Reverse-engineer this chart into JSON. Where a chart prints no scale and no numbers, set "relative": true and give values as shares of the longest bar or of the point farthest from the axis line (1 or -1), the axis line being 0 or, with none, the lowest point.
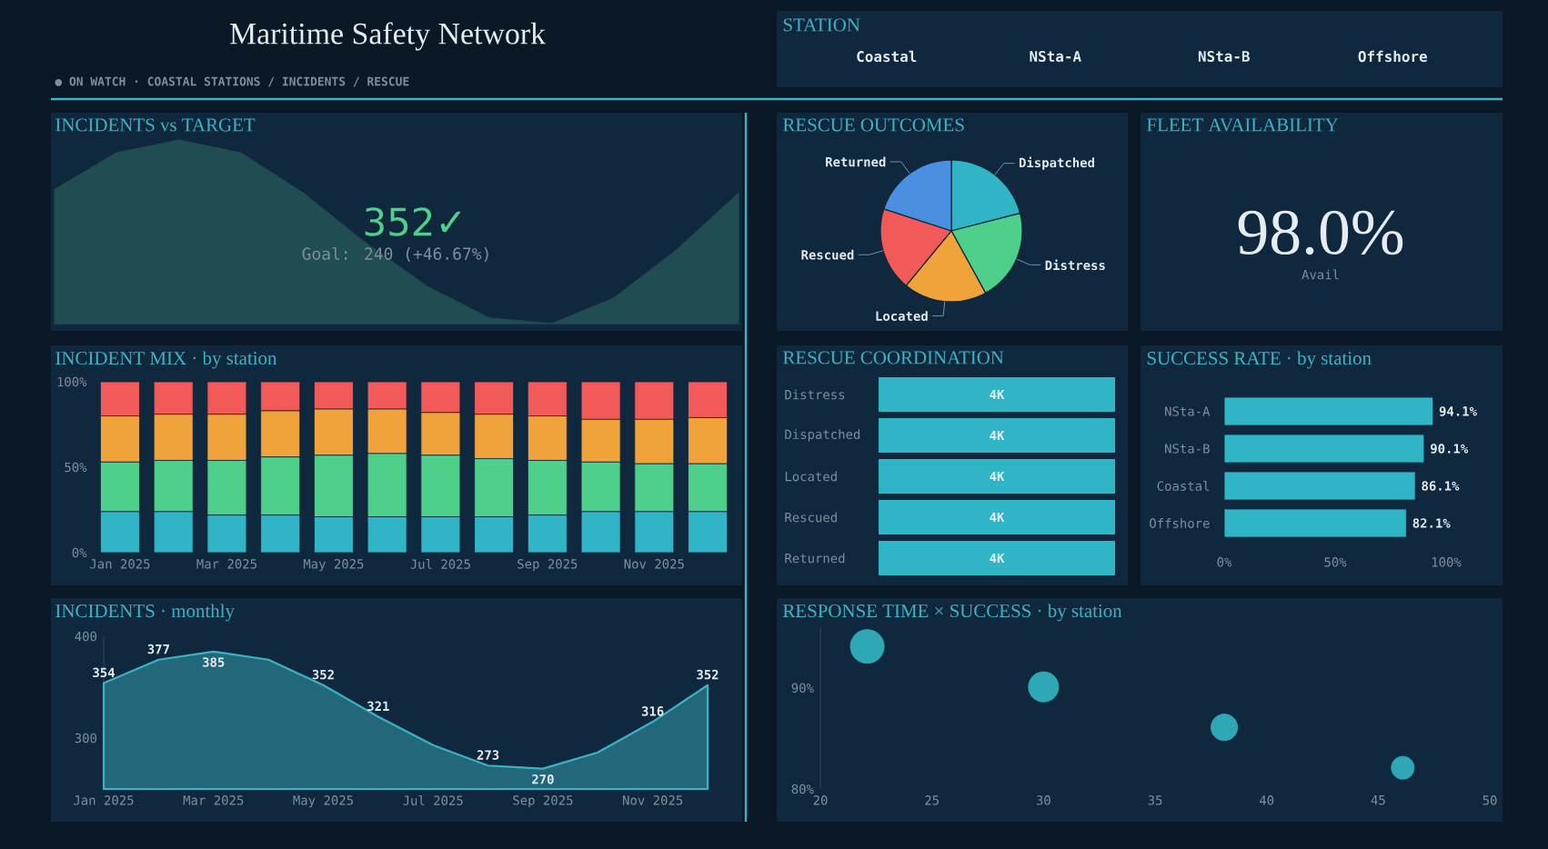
{
  "chart_data": [
    {
      "type": "other",
      "title": "Maritime Safety Network",
      "subtitle": "● ON WATCH  ·  COASTAL STATIONS / INCIDENTS / RESCUE"
    },
    {
      "type": "other",
      "title": "STATION",
      "categories": [
        "Coastal",
        "NSta-A",
        "NSta-B",
        "Offshore"
      ]
    },
    {
      "type": "area",
      "title": "INCIDENTS vs TARGET",
      "relative": true,
      "categories": [
        null,
        null,
        null,
        null,
        null,
        null,
        null,
        null,
        null,
        null,
        null,
        null
      ],
      "values": [
        0.73,
        0.93,
        1,
        0.93,
        0.71,
        0.44,
        0.2,
        0.03,
        0,
        0.14,
        0.4,
        0.71
      ],
      "color": "#1f4d52",
      "annotations": [
        "352✓",
        "Goal: 240 (+46.67%)"
      ]
    },
    {
      "type": "pie",
      "title": "RESCUE OUTCOMES",
      "categories": [
        "Dispatched",
        "Distress",
        "Located",
        "Rescued",
        "Returned"
      ],
      "values": [
        21,
        21,
        19,
        19,
        20
      ],
      "colors": [
        "#2fb5c6",
        "#4ecf8a",
        "#f0a23b",
        "#f25a5a",
        "#4a8fe0"
      ]
    },
    {
      "type": "other",
      "title": "FLEET AVAILABILITY",
      "annotations": [
        "98.0%",
        "Avail"
      ]
    },
    {
      "type": "bar",
      "title": "INCIDENT MIX · by station",
      "stacked": true,
      "categories": [
        "Jan 2025",
        null,
        "Mar 2025",
        null,
        "May 2025",
        null,
        "Jul 2025",
        null,
        "Sep 2025",
        null,
        "Nov 2025",
        null
      ],
      "ylim": [
        0,
        100
      ],
      "yticks": [
        {
          "value": 0,
          "label": "0%"
        },
        {
          "value": 50,
          "label": "50%"
        },
        {
          "value": 100,
          "label": "100%"
        }
      ],
      "series": [
        {
          "color": "#2fb5c6",
          "values": [
            24,
            24,
            22,
            22,
            21,
            21,
            21,
            21,
            22,
            24,
            24,
            24
          ]
        },
        {
          "color": "#4ecf8a",
          "values": [
            29,
            30,
            32,
            34,
            36,
            37,
            36,
            34,
            32,
            29,
            28,
            28
          ]
        },
        {
          "color": "#f0a23b",
          "values": [
            27,
            27,
            27,
            27,
            27,
            26,
            25,
            26,
            26,
            25,
            26,
            27
          ]
        },
        {
          "color": "#f25a5a",
          "values": [
            20,
            19,
            19,
            17,
            16,
            16,
            18,
            19,
            20,
            22,
            22,
            21
          ]
        }
      ]
    },
    {
      "type": "other",
      "title": "RESCUE COORDINATION",
      "categories": [
        "Distress",
        "Dispatched",
        "Located",
        "Rescued",
        "Returned"
      ],
      "values": [
        4000,
        4000,
        4000,
        4000,
        4000
      ],
      "value_labels": [
        "4K",
        "4K",
        "4K",
        "4K",
        "4K"
      ],
      "color": "#2fb5c6"
    },
    {
      "type": "bar",
      "title": "SUCCESS RATE · by station",
      "orientation": "horizontal",
      "categories": [
        "NSta-A",
        "NSta-B",
        "Coastal",
        "Offshore"
      ],
      "values": [
        94.1,
        90.1,
        86.1,
        82.1
      ],
      "value_labels": [
        "94.1%",
        "90.1%",
        "86.1%",
        "82.1%"
      ],
      "color": "#2fb5c6",
      "xlim": [
        0,
        100
      ],
      "xticks": [
        {
          "value": 0,
          "label": "0%"
        },
        {
          "value": 50,
          "label": "50%"
        },
        {
          "value": 100,
          "label": "100%"
        }
      ]
    },
    {
      "type": "area",
      "title": "INCIDENTS · monthly",
      "categories": [
        "Jan 2025",
        null,
        "Mar 2025",
        null,
        "May 2025",
        null,
        "Jul 2025",
        null,
        "Sep 2025",
        null,
        "Nov 2025",
        null
      ],
      "values": [
        354,
        377,
        385,
        377,
        352,
        321,
        293,
        273,
        270,
        286,
        316,
        352
      ],
      "value_labels": [
        "354",
        "377",
        "385",
        null,
        "352",
        "321",
        null,
        "273",
        "270",
        null,
        "316",
        "352"
      ],
      "color": "#3bb3c3",
      "ylim": [
        250,
        400
      ],
      "yticks": [
        300,
        400
      ]
    },
    {
      "type": "bubble",
      "title": "RESPONSE TIME × SUCCESS · by station",
      "x": [
        22.1,
        30,
        38.1,
        46.1
      ],
      "values": [
        94.1,
        90.1,
        86.1,
        82.1
      ],
      "sizes": [
        1,
        0.8,
        0.62,
        0.46
      ],
      "color": "#2fa8b5",
      "xlim": [
        20,
        50
      ],
      "xticks": [
        20,
        25,
        30,
        35,
        40,
        45,
        50
      ],
      "ylim": [
        80,
        96
      ],
      "yticks": [
        {
          "value": 80,
          "label": "80%"
        },
        {
          "value": 90,
          "label": "90%"
        }
      ]
    }
  ]
}
